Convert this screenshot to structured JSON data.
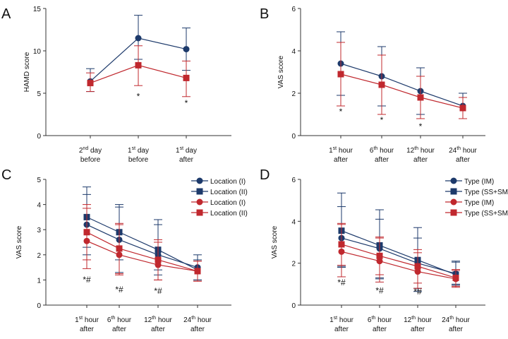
{
  "colors": {
    "blue": "#1d3a6b",
    "red": "#c0282e",
    "axis": "#333333"
  },
  "chart_data": [
    {
      "panel_label": "A",
      "type": "line",
      "ylabel": "HAMD score",
      "ylim": [
        0,
        15
      ],
      "yticks": [
        0,
        5,
        10,
        15
      ],
      "categories": [
        [
          "2nd day",
          "before"
        ],
        [
          "1st day",
          "before"
        ],
        [
          "1st day",
          "after"
        ]
      ],
      "series": [
        {
          "name": "",
          "color": "blue",
          "marker": "circle",
          "values": [
            6.4,
            11.5,
            10.2
          ],
          "err_up": [
            1.5,
            2.7,
            2.5
          ],
          "err_down": [
            1.2,
            2.5,
            2.5
          ]
        },
        {
          "name": "",
          "color": "red",
          "marker": "square",
          "values": [
            6.2,
            8.3,
            6.8
          ],
          "err_up": [
            1.2,
            2.3,
            2.0
          ],
          "err_down": [
            1.0,
            2.4,
            2.2
          ]
        }
      ],
      "annotations": [
        {
          "cat": 1,
          "y": 4.3,
          "text": "*"
        },
        {
          "cat": 2,
          "y": 3.5,
          "text": "*"
        }
      ]
    },
    {
      "panel_label": "B",
      "type": "line",
      "ylabel": "VAS score",
      "ylim": [
        0,
        6
      ],
      "yticks": [
        0,
        2,
        4,
        6
      ],
      "categories": [
        [
          "1st hour",
          "after"
        ],
        [
          "6th hour",
          "after"
        ],
        [
          "12th hour",
          "after"
        ],
        [
          "24th hour",
          "after"
        ]
      ],
      "series": [
        {
          "name": "",
          "color": "blue",
          "marker": "circle",
          "values": [
            3.4,
            2.8,
            2.1,
            1.4
          ],
          "err_up": [
            1.5,
            1.4,
            1.1,
            0.6
          ],
          "err_down": [
            1.5,
            1.4,
            1.1,
            0.6
          ]
        },
        {
          "name": "",
          "color": "red",
          "marker": "square",
          "values": [
            2.9,
            2.4,
            1.8,
            1.3
          ],
          "err_up": [
            1.5,
            1.4,
            1.0,
            0.5
          ],
          "err_down": [
            1.5,
            1.4,
            1.0,
            0.5
          ]
        }
      ],
      "annotations": [
        {
          "cat": 0,
          "y": 1.0,
          "text": "*"
        },
        {
          "cat": 1,
          "y": 0.6,
          "text": "*"
        },
        {
          "cat": 2,
          "y": 0.3,
          "text": "*"
        }
      ]
    },
    {
      "panel_label": "C",
      "type": "line",
      "ylabel": "VAS score",
      "ylim": [
        0,
        5
      ],
      "yticks": [
        0,
        1,
        2,
        3,
        4,
        5
      ],
      "categories": [
        [
          "1st hour",
          "after"
        ],
        [
          "6th hour",
          "after"
        ],
        [
          "12th hour",
          "after"
        ],
        [
          "24th hour",
          "after"
        ]
      ],
      "series": [
        {
          "name": "Location (I)",
          "color": "blue",
          "marker": "circle",
          "values": [
            3.2,
            2.6,
            2.0,
            1.5
          ],
          "err_up": [
            1.2,
            1.3,
            1.2,
            0.5
          ],
          "err_down": [
            1.2,
            1.3,
            0.8,
            0.5
          ]
        },
        {
          "name": "Location (II)",
          "color": "blue",
          "marker": "square",
          "values": [
            3.5,
            2.9,
            2.2,
            1.4
          ],
          "err_up": [
            1.2,
            1.1,
            1.2,
            0.4
          ],
          "err_down": [
            1.2,
            1.1,
            0.8,
            0.4
          ]
        },
        {
          "name": "Location (I)",
          "color": "red",
          "marker": "circle",
          "values": [
            2.55,
            2.0,
            1.6,
            1.35
          ],
          "err_up": [
            1.3,
            1.2,
            0.9,
            0.4
          ],
          "err_down": [
            1.1,
            0.8,
            0.6,
            0.4
          ]
        },
        {
          "name": "Location (II)",
          "color": "red",
          "marker": "square",
          "values": [
            2.9,
            2.25,
            1.8,
            1.35
          ],
          "err_up": [
            1.1,
            1.0,
            0.8,
            0.4
          ],
          "err_down": [
            1.1,
            1.0,
            0.8,
            0.4
          ]
        }
      ],
      "annotations": [
        {
          "cat": 0,
          "y": 0.9,
          "text": "*#"
        },
        {
          "cat": 1,
          "y": 0.5,
          "text": "*#"
        },
        {
          "cat": 2,
          "y": 0.45,
          "text": "*#"
        }
      ],
      "legend_position": "top-right"
    },
    {
      "panel_label": "D",
      "type": "line",
      "ylabel": "VAS score",
      "ylim": [
        0,
        6
      ],
      "yticks": [
        0,
        2,
        4,
        6
      ],
      "categories": [
        [
          "1st hour",
          "after"
        ],
        [
          "6th hour",
          "after"
        ],
        [
          "12th hour",
          "after"
        ],
        [
          "24th hour",
          "after"
        ]
      ],
      "series": [
        {
          "name": "Type (IM)",
          "color": "blue",
          "marker": "circle",
          "values": [
            3.2,
            2.7,
            2.0,
            1.5
          ],
          "err_up": [
            1.5,
            1.4,
            1.2,
            0.6
          ],
          "err_down": [
            1.4,
            1.4,
            1.2,
            0.5
          ]
        },
        {
          "name": "Type (SS+SM)",
          "color": "blue",
          "marker": "square",
          "values": [
            3.55,
            2.85,
            2.15,
            1.45
          ],
          "err_up": [
            1.8,
            1.7,
            1.55,
            0.6
          ],
          "err_down": [
            1.7,
            1.6,
            1.5,
            0.5
          ]
        },
        {
          "name": "Type (IM)",
          "color": "red",
          "marker": "circle",
          "values": [
            2.55,
            2.1,
            1.6,
            1.25
          ],
          "err_up": [
            1.3,
            1.1,
            0.9,
            0.4
          ],
          "err_down": [
            1.2,
            1.0,
            0.8,
            0.4
          ]
        },
        {
          "name": "Type (SS+SM)",
          "color": "red",
          "marker": "square",
          "values": [
            2.9,
            2.35,
            1.85,
            1.3
          ],
          "err_up": [
            1.0,
            0.9,
            0.8,
            0.4
          ],
          "err_down": [
            1.0,
            0.9,
            0.8,
            0.4
          ]
        }
      ],
      "annotations": [
        {
          "cat": 0,
          "y": 0.95,
          "text": "*#"
        },
        {
          "cat": 1,
          "y": 0.55,
          "text": "*#"
        },
        {
          "cat": 2,
          "y": 0.5,
          "text": "*#"
        }
      ],
      "legend_position": "top-right"
    }
  ]
}
